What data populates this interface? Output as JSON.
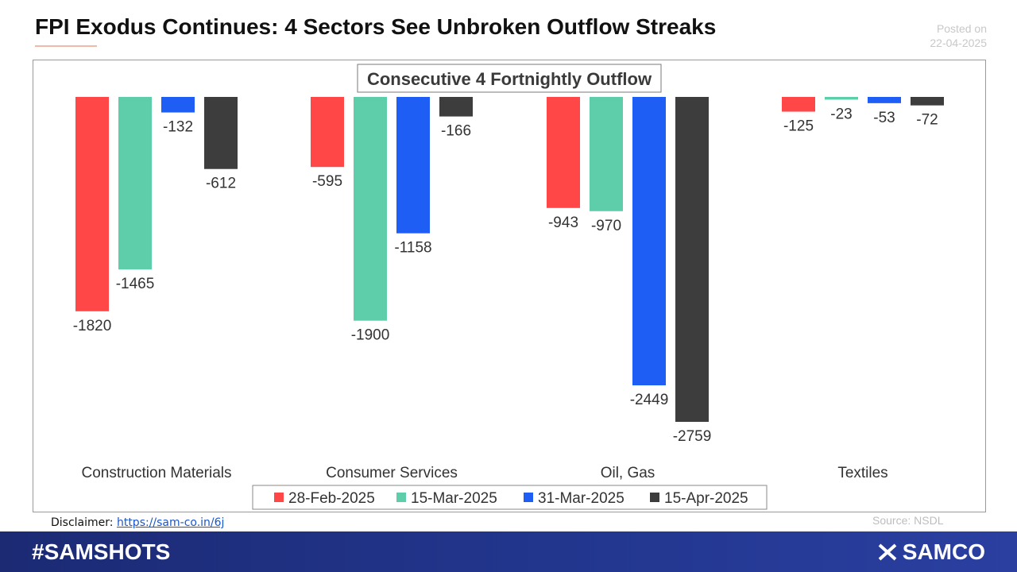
{
  "header": {
    "title": "FPI Exodus Continues: 4 Sectors See Unbroken Outflow Streaks",
    "posted_label": "Posted on",
    "posted_date": "22-04-2025"
  },
  "chart_data": {
    "type": "bar",
    "title": "Consecutive 4 Fortnightly Outflow",
    "categories": [
      "Construction Materials",
      "Consumer Services",
      "Oil, Gas",
      "Textiles"
    ],
    "series": [
      {
        "name": "28-Feb-2025",
        "color": "#ff4747",
        "values": [
          -1820,
          -595,
          -943,
          -125
        ]
      },
      {
        "name": "15-Mar-2025",
        "color": "#5ecdaa",
        "values": [
          -1465,
          -1900,
          -970,
          -23
        ]
      },
      {
        "name": "31-Mar-2025",
        "color": "#1f5ef5",
        "values": [
          -132,
          -1158,
          -2449,
          -53
        ]
      },
      {
        "name": "15-Apr-2025",
        "color": "#3d3d3d",
        "values": [
          -612,
          -166,
          -2759,
          -72
        ]
      }
    ],
    "ylim": [
      -2759,
      0
    ],
    "xlabel": "",
    "ylabel": "",
    "legend": "bottom"
  },
  "footer": {
    "disclaimer_label": "Disclaimer:",
    "disclaimer_link": "https://sam-co.in/6j",
    "source": "Source: NSDL",
    "hashtag": "#SAMSHOTS",
    "brand": "SAMCO"
  }
}
